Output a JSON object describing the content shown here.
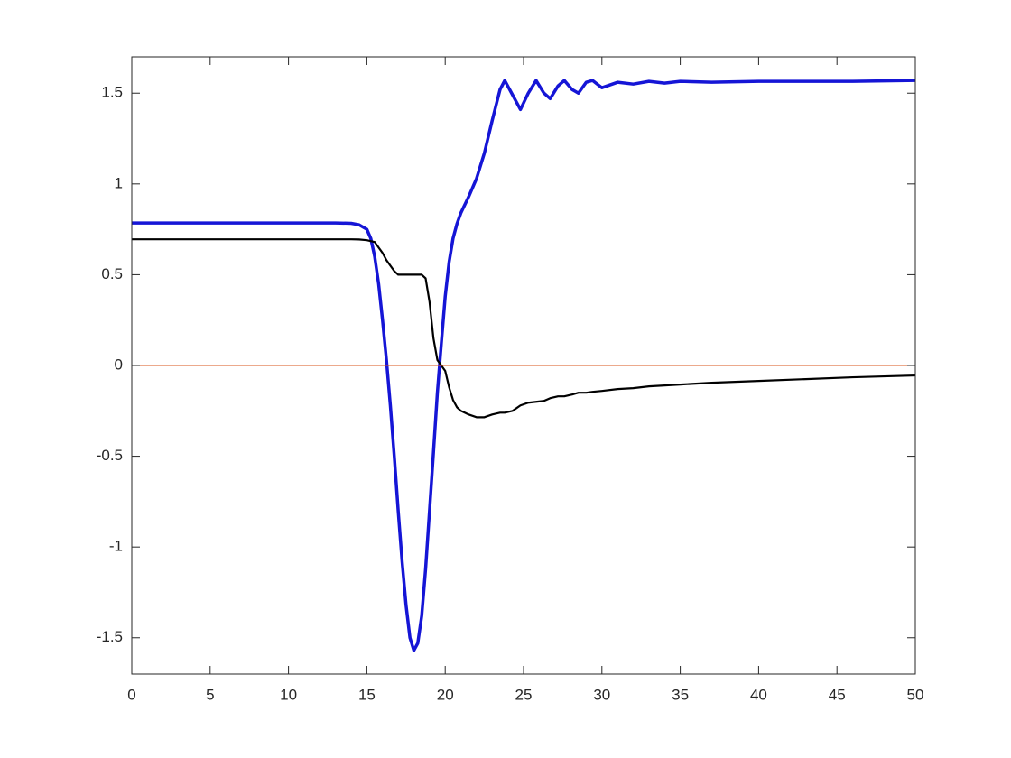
{
  "chart_data": {
    "type": "line",
    "x": [
      0,
      5,
      10,
      12,
      13,
      14,
      14.5,
      15,
      15.25,
      15.5,
      15.75,
      16,
      16.25,
      16.5,
      16.75,
      17,
      17.25,
      17.5,
      17.75,
      18,
      18.25,
      18.5,
      18.75,
      19,
      19.25,
      19.5,
      19.75,
      20,
      20.25,
      20.5,
      20.75,
      21,
      21.5,
      22,
      22.5,
      23,
      23.5,
      23.8,
      24.3,
      24.8,
      25.3,
      25.8,
      26.3,
      26.7,
      27.2,
      27.6,
      28.1,
      28.5,
      29,
      29.4,
      30,
      31,
      32,
      33,
      34,
      35,
      37,
      40,
      43,
      46,
      50
    ],
    "series": [
      {
        "color": "#1515d6",
        "values": [
          0.785,
          0.785,
          0.785,
          0.785,
          0.785,
          0.783,
          0.775,
          0.75,
          0.7,
          0.6,
          0.45,
          0.25,
          0.03,
          -0.22,
          -0.5,
          -0.8,
          -1.08,
          -1.32,
          -1.5,
          -1.57,
          -1.53,
          -1.38,
          -1.12,
          -0.8,
          -0.48,
          -0.15,
          0.12,
          0.38,
          0.57,
          0.7,
          0.78,
          0.84,
          0.93,
          1.03,
          1.17,
          1.35,
          1.52,
          1.57,
          1.49,
          1.41,
          1.5,
          1.57,
          1.5,
          1.47,
          1.54,
          1.57,
          1.52,
          1.5,
          1.56,
          1.57,
          1.53,
          1.56,
          1.55,
          1.565,
          1.555,
          1.565,
          1.56,
          1.565,
          1.565,
          1.565,
          1.57
        ]
      },
      {
        "color": "#000000",
        "values": [
          0.695,
          0.695,
          0.695,
          0.695,
          0.695,
          0.695,
          0.694,
          0.69,
          0.685,
          0.68,
          0.65,
          0.62,
          0.58,
          0.55,
          0.52,
          0.5,
          0.5,
          0.5,
          0.5,
          0.5,
          0.5,
          0.5,
          0.48,
          0.35,
          0.15,
          0.03,
          0,
          -0.03,
          -0.12,
          -0.19,
          -0.23,
          -0.25,
          -0.27,
          -0.285,
          -0.285,
          -0.27,
          -0.26,
          -0.26,
          -0.25,
          -0.22,
          -0.205,
          -0.2,
          -0.195,
          -0.18,
          -0.17,
          -0.17,
          -0.16,
          -0.15,
          -0.15,
          -0.145,
          -0.14,
          -0.13,
          -0.125,
          -0.115,
          -0.11,
          -0.105,
          -0.095,
          -0.085,
          -0.075,
          -0.065,
          -0.055
        ]
      },
      {
        "color": "#d95319",
        "x": [
          0,
          50
        ],
        "values": [
          0,
          0
        ]
      }
    ],
    "xlim": [
      0,
      50
    ],
    "xticks": [
      0,
      5,
      10,
      15,
      20,
      25,
      30,
      35,
      40,
      45,
      50
    ],
    "ylim": [
      -1.7,
      1.7
    ],
    "yticks": [
      -1.5,
      -1,
      -0.5,
      0,
      0.5,
      1,
      1.5
    ],
    "grid": false
  }
}
